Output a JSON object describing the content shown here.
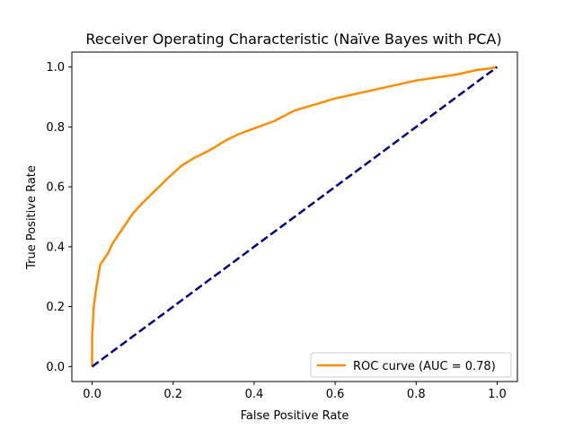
{
  "chart_data": {
    "type": "line",
    "title": "Receiver Operating Characteristic (Naïve Bayes with PCA)",
    "xlabel": "False Positive Rate",
    "ylabel": "True Positive Rate",
    "xlim": [
      -0.05,
      1.05
    ],
    "ylim": [
      -0.05,
      1.05
    ],
    "xticks": [
      "0.0",
      "0.2",
      "0.4",
      "0.6",
      "0.8",
      "1.0"
    ],
    "yticks": [
      "0.0",
      "0.2",
      "0.4",
      "0.6",
      "0.8",
      "1.0"
    ],
    "grid": false,
    "legend_position": "lower-right",
    "series": [
      {
        "name": "ROC curve (AUC = 0.78)",
        "color": "#ff8c00",
        "style": "solid",
        "x": [
          0.0,
          0.0,
          0.002,
          0.004,
          0.006,
          0.01,
          0.015,
          0.02,
          0.03,
          0.04,
          0.05,
          0.06,
          0.08,
          0.1,
          0.12,
          0.15,
          0.18,
          0.2,
          0.22,
          0.25,
          0.28,
          0.3,
          0.33,
          0.36,
          0.4,
          0.45,
          0.5,
          0.55,
          0.6,
          0.65,
          0.7,
          0.75,
          0.8,
          0.85,
          0.9,
          0.95,
          0.98,
          1.0
        ],
        "y": [
          0.0,
          0.1,
          0.15,
          0.2,
          0.22,
          0.26,
          0.3,
          0.34,
          0.36,
          0.38,
          0.41,
          0.43,
          0.47,
          0.51,
          0.54,
          0.58,
          0.62,
          0.645,
          0.67,
          0.695,
          0.715,
          0.73,
          0.755,
          0.775,
          0.795,
          0.82,
          0.855,
          0.875,
          0.895,
          0.91,
          0.925,
          0.94,
          0.955,
          0.965,
          0.975,
          0.99,
          0.995,
          1.0
        ]
      },
      {
        "name": "",
        "color": "#000080",
        "style": "dashed",
        "x": [
          0.0,
          1.0
        ],
        "y": [
          0.0,
          1.0
        ]
      }
    ]
  }
}
